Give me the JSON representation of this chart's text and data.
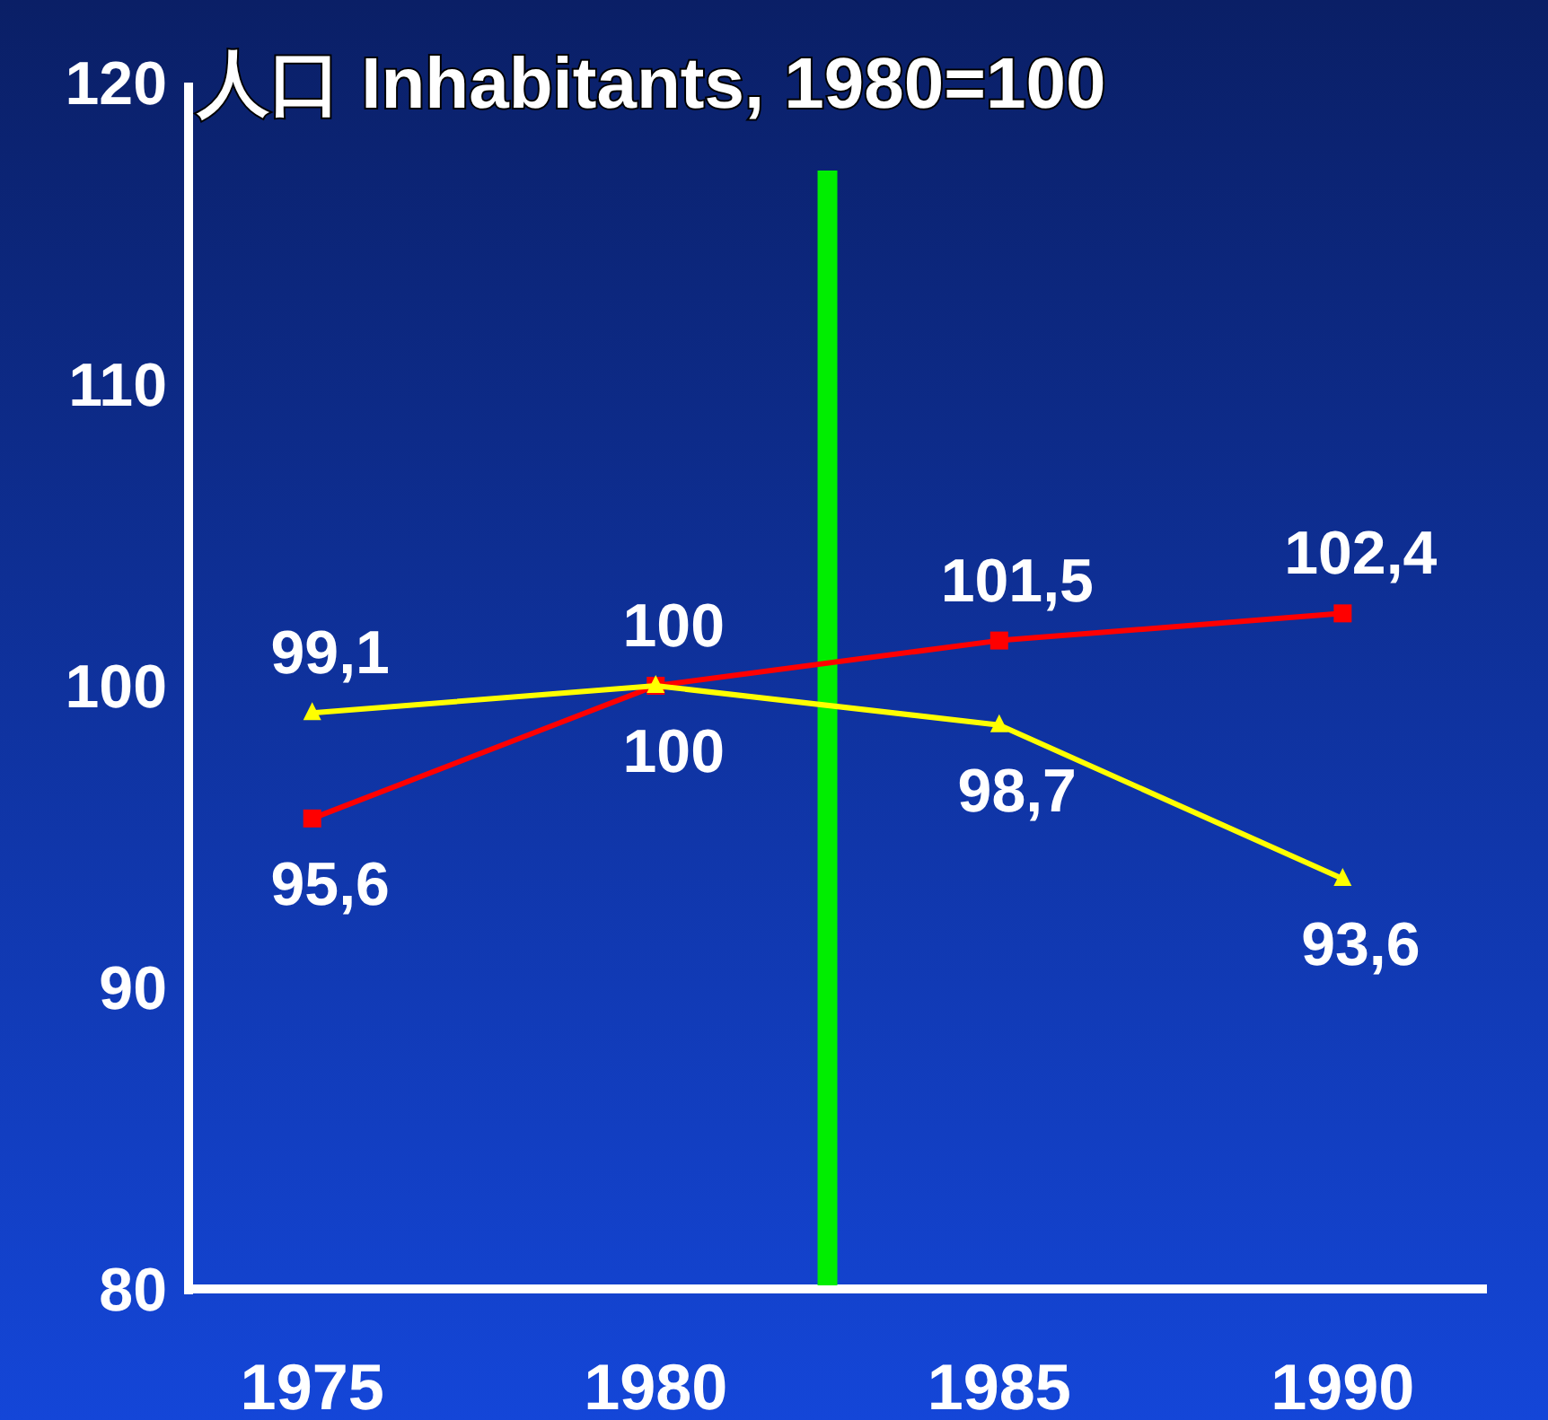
{
  "chart_data": {
    "type": "line",
    "title": "人口 Inhabitants, 1980=100",
    "x": [
      1975,
      1980,
      1985,
      1990
    ],
    "xlim": [
      1973.2,
      1992.1
    ],
    "xticks": [
      1975,
      1980,
      1985,
      1990
    ],
    "ylim": [
      80,
      120
    ],
    "yticks": [
      80,
      90,
      100,
      110,
      120
    ],
    "grid": false,
    "series": [
      {
        "color": "#ff0000",
        "marker": "square",
        "values": [
          95.6,
          100,
          101.5,
          102.4
        ],
        "value_labels": [
          "95,6",
          "100",
          "101,5",
          "102,4"
        ]
      },
      {
        "color": "#ffff00",
        "marker": "triangle",
        "values": [
          99.1,
          100,
          98.7,
          93.6
        ],
        "value_labels": [
          "99,1",
          "100",
          "98,7",
          "93,6"
        ]
      }
    ],
    "ref_lines": [
      {
        "axis": "x",
        "value": 1982.5,
        "color": "#00ee00"
      }
    ]
  }
}
